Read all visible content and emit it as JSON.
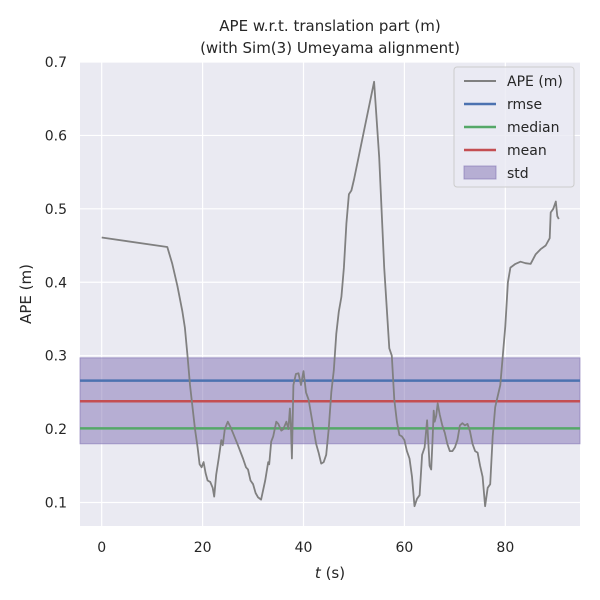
{
  "chart_data": {
    "type": "line",
    "title_line1": "APE w.r.t. translation part (m)",
    "title_line2": "(with Sim(3) Umeyama alignment)",
    "xlabel_italic": "t",
    "xlabel_unit": " (s)",
    "ylabel": "APE (m)",
    "xlim": [
      -4.3,
      94.8
    ],
    "ylim": [
      0.068,
      0.7
    ],
    "xticks": [
      0,
      20,
      40,
      60,
      80
    ],
    "xtick_labels": [
      "0",
      "20",
      "40",
      "60",
      "80"
    ],
    "yticks": [
      0.1,
      0.2,
      0.3,
      0.4,
      0.5,
      0.6,
      0.7
    ],
    "ytick_labels": [
      "0.1",
      "0.2",
      "0.3",
      "0.4",
      "0.5",
      "0.6",
      "0.7"
    ],
    "grid": true,
    "legend_position": "top-right",
    "legend": [
      "APE (m)",
      "rmse",
      "median",
      "mean",
      "std"
    ],
    "colors": {
      "background": "#EAEAF2",
      "grid": "#FFFFFF",
      "ape": "#808080",
      "rmse": "#4C72B0",
      "median": "#55A868",
      "mean": "#C44E52",
      "std": "#8172B3"
    },
    "stats": {
      "rmse": 0.266,
      "median": 0.201,
      "mean": 0.238,
      "std_band": [
        0.18,
        0.297
      ]
    },
    "series": [
      {
        "name": "APE (m)",
        "x": [
          0,
          13,
          14,
          15,
          16,
          16.5,
          17,
          17.5,
          18,
          18.5,
          19,
          19.4,
          19.8,
          20.2,
          20.6,
          21,
          21.5,
          22,
          22.3,
          22.7,
          23.2,
          23.7,
          24,
          24.4,
          25,
          25.5,
          26,
          27,
          28,
          28.6,
          29,
          29.5,
          30,
          30.5,
          31,
          31.6,
          32.4,
          33,
          33.2,
          33.6,
          34,
          34.6,
          35,
          35.6,
          36,
          36.6,
          37,
          37.3,
          37.5,
          37.7,
          38,
          38.5,
          39,
          39.5,
          40,
          40.5,
          41,
          41.5,
          42,
          42.5,
          43,
          43.5,
          44,
          44.5,
          45,
          45.5,
          46,
          46.5,
          47,
          47.5,
          48,
          48.5,
          49,
          49.5,
          50,
          51,
          52,
          53,
          54,
          55,
          56,
          57,
          57.5,
          58,
          58.5,
          59,
          59.5,
          60,
          60.5,
          61,
          61.5,
          62,
          62.5,
          63,
          63.5,
          64,
          64.5,
          65,
          65.3,
          65.6,
          65.8,
          66,
          66.3,
          66.6,
          67,
          67.5,
          68,
          68.5,
          69,
          69.5,
          70,
          70.5,
          71,
          71.5,
          72,
          72.5,
          73,
          73.5,
          74,
          74.5,
          75,
          75.5,
          76,
          76.5,
          77,
          77.5,
          78,
          79,
          80,
          80.5,
          81,
          82,
          83,
          84,
          85,
          86,
          87,
          88,
          88.8,
          89,
          89.5,
          90,
          90.3,
          90.6
        ],
        "y": [
          0.461,
          0.448,
          0.425,
          0.395,
          0.36,
          0.338,
          0.3,
          0.26,
          0.23,
          0.2,
          0.175,
          0.152,
          0.148,
          0.155,
          0.14,
          0.13,
          0.128,
          0.12,
          0.108,
          0.138,
          0.16,
          0.185,
          0.178,
          0.2,
          0.21,
          0.203,
          0.195,
          0.178,
          0.16,
          0.148,
          0.145,
          0.13,
          0.125,
          0.113,
          0.107,
          0.104,
          0.13,
          0.155,
          0.152,
          0.183,
          0.19,
          0.21,
          0.207,
          0.198,
          0.2,
          0.21,
          0.2,
          0.228,
          0.205,
          0.16,
          0.26,
          0.275,
          0.276,
          0.26,
          0.279,
          0.25,
          0.24,
          0.22,
          0.2,
          0.18,
          0.168,
          0.153,
          0.155,
          0.165,
          0.2,
          0.25,
          0.28,
          0.33,
          0.36,
          0.38,
          0.42,
          0.48,
          0.52,
          0.525,
          0.54,
          0.573,
          0.607,
          0.64,
          0.673,
          0.57,
          0.42,
          0.31,
          0.3,
          0.24,
          0.21,
          0.192,
          0.19,
          0.185,
          0.17,
          0.16,
          0.135,
          0.095,
          0.105,
          0.11,
          0.165,
          0.175,
          0.212,
          0.15,
          0.145,
          0.19,
          0.225,
          0.21,
          0.218,
          0.235,
          0.22,
          0.205,
          0.195,
          0.18,
          0.17,
          0.17,
          0.175,
          0.185,
          0.205,
          0.208,
          0.205,
          0.207,
          0.197,
          0.18,
          0.17,
          0.168,
          0.15,
          0.135,
          0.095,
          0.12,
          0.125,
          0.19,
          0.23,
          0.26,
          0.34,
          0.4,
          0.42,
          0.425,
          0.428,
          0.426,
          0.425,
          0.438,
          0.445,
          0.45,
          0.46,
          0.495,
          0.5,
          0.51,
          0.49,
          0.486
        ]
      }
    ]
  }
}
